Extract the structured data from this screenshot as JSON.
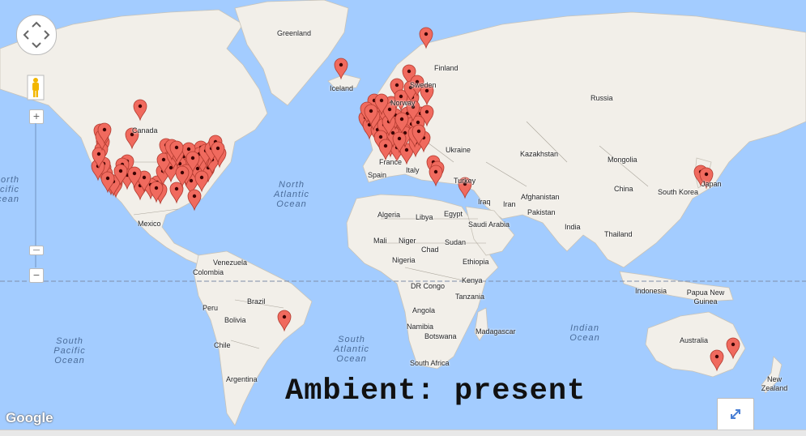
{
  "map": {
    "countries": [
      {
        "name": "Greenland"
      },
      {
        "name": "Iceland"
      },
      {
        "name": "Finland"
      },
      {
        "name": "Sweden"
      },
      {
        "name": "Norway"
      },
      {
        "name": "Russia"
      },
      {
        "name": "Canada"
      },
      {
        "name": "Ukraine"
      },
      {
        "name": "Kazakhstan"
      },
      {
        "name": "Mongolia"
      },
      {
        "name": "China"
      },
      {
        "name": "South Korea"
      },
      {
        "name": "Japan"
      },
      {
        "name": "France"
      },
      {
        "name": "Spain"
      },
      {
        "name": "Italy"
      },
      {
        "name": "Turkey"
      },
      {
        "name": "Iraq"
      },
      {
        "name": "Iran"
      },
      {
        "name": "Afghanistan"
      },
      {
        "name": "Pakistan"
      },
      {
        "name": "India"
      },
      {
        "name": "Thailand"
      },
      {
        "name": "Algeria"
      },
      {
        "name": "Libya"
      },
      {
        "name": "Egypt"
      },
      {
        "name": "Saudi Arabia"
      },
      {
        "name": "Mali"
      },
      {
        "name": "Niger"
      },
      {
        "name": "Chad"
      },
      {
        "name": "Sudan"
      },
      {
        "name": "Nigeria"
      },
      {
        "name": "Ethiopia"
      },
      {
        "name": "DR Congo"
      },
      {
        "name": "Kenya"
      },
      {
        "name": "Tanzania"
      },
      {
        "name": "Angola"
      },
      {
        "name": "Namibia"
      },
      {
        "name": "Botswana"
      },
      {
        "name": "South Africa"
      },
      {
        "name": "Madagascar"
      },
      {
        "name": "Indonesia"
      },
      {
        "name": "Papua New Guinea"
      },
      {
        "name": "Australia"
      },
      {
        "name": "New Zealand"
      },
      {
        "name": "Mexico"
      },
      {
        "name": "Venezuela"
      },
      {
        "name": "Colombia"
      },
      {
        "name": "Peru"
      },
      {
        "name": "Brazil"
      },
      {
        "name": "Bolivia"
      },
      {
        "name": "Chile"
      },
      {
        "name": "Argentina"
      }
    ],
    "oceans": [
      {
        "name": "North Atlantic Ocean"
      },
      {
        "name": "South Pacific Ocean"
      },
      {
        "name": "South Atlantic Ocean"
      },
      {
        "name": "Indian Ocean"
      },
      {
        "name": "North Pacific Ocean"
      }
    ],
    "marker_color": "#f06a5e",
    "marker_count": 120
  },
  "overlay_text": "Ambient: present",
  "attribution": "Google",
  "controls": {
    "pan_icon": "pan-arrows-icon",
    "streetview_icon": "pegman-icon",
    "zoom_in": "+",
    "zoom_out": "−",
    "fullscreen_icon": "fullscreen-icon"
  }
}
